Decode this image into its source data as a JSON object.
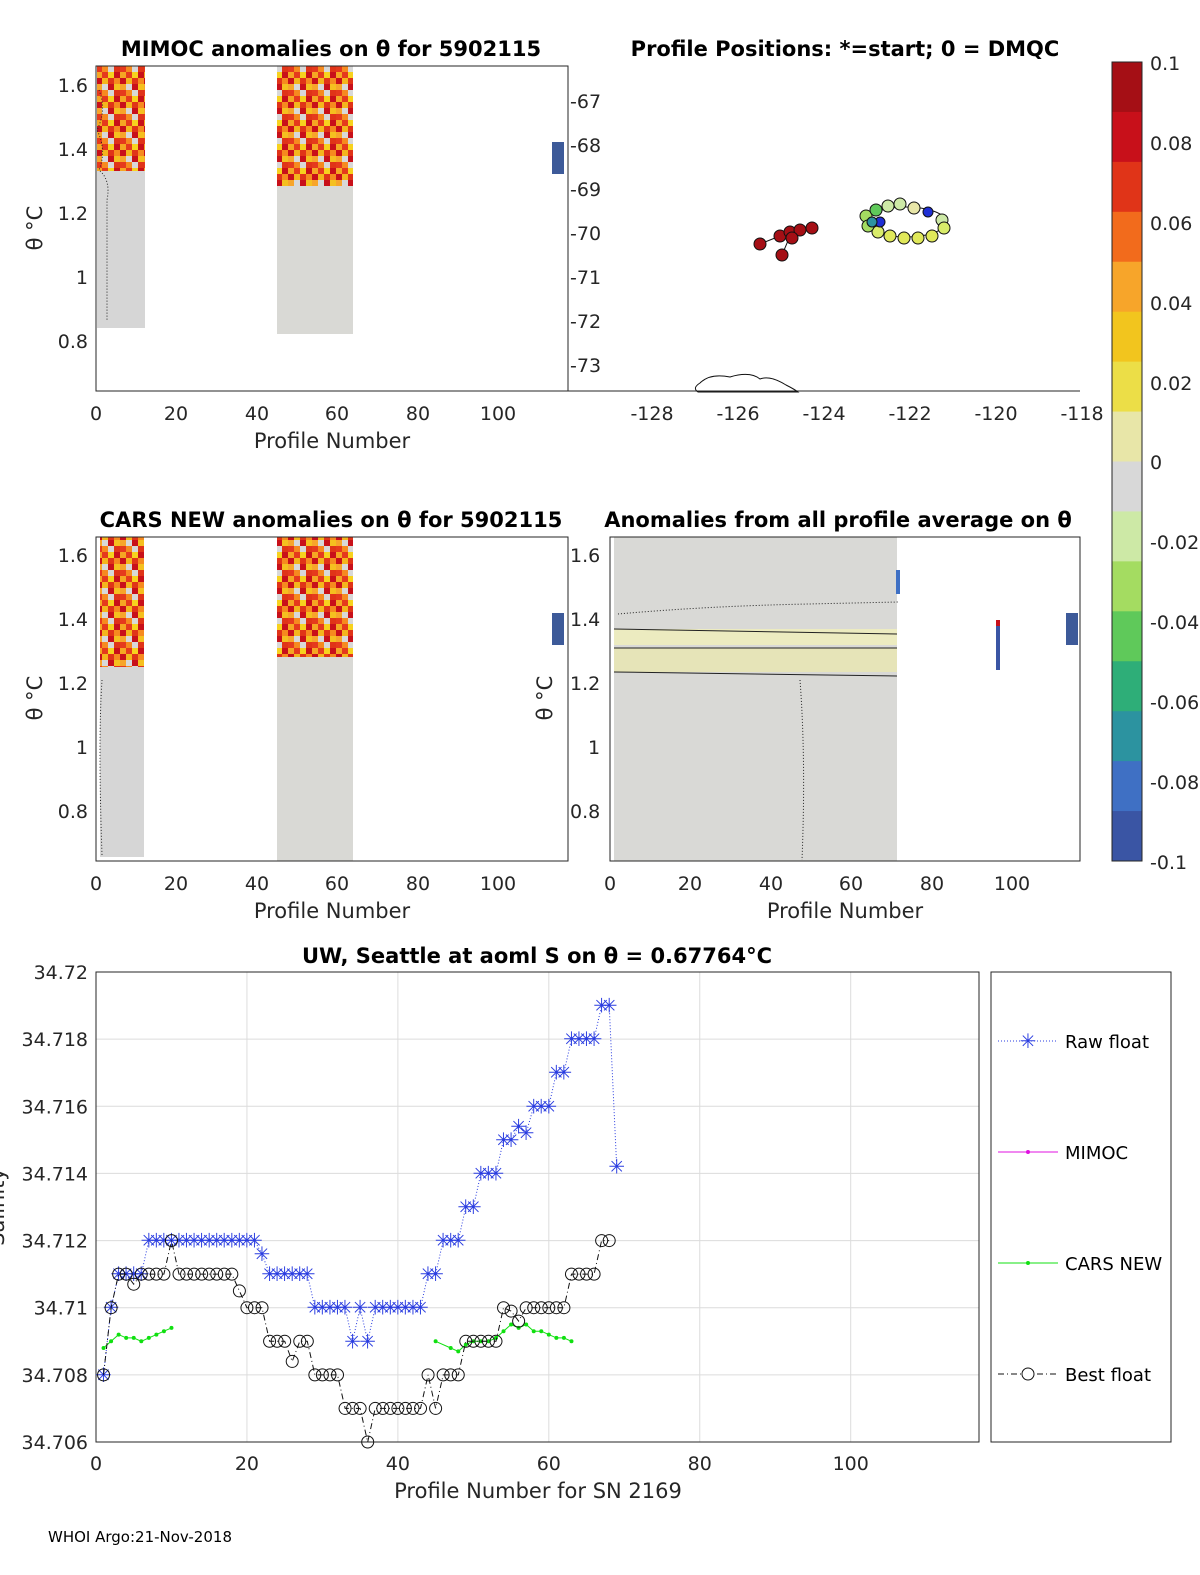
{
  "footer": "WHOI Argo:21-Nov-2018",
  "colorbar": {
    "ticks": [
      "0.1",
      "0.08",
      "0.06",
      "0.04",
      "0.02",
      "0",
      "-0.02",
      "-0.04",
      "-0.06",
      "-0.08",
      "-0.1"
    ],
    "colors": [
      "#a50f15",
      "#c8101a",
      "#e03418",
      "#f26b1c",
      "#f7a52a",
      "#f2c51e",
      "#ecde47",
      "#e8e6a8",
      "#d8d8d8",
      "#cde9a6",
      "#a4dc61",
      "#5fc95a",
      "#2eae78",
      "#2c93a0",
      "#3f70c4",
      "#3a55a4"
    ]
  },
  "panels": {
    "mimoc": {
      "title": "MIMOC anomalies on θ  for 5902115",
      "xlabel": "Profile Number",
      "ylabel": "θ °C",
      "xticks": [
        "0",
        "20",
        "40",
        "60",
        "80",
        "100"
      ],
      "yticks": [
        "1.6",
        "1.4",
        "1.2",
        "1",
        "0.8"
      ]
    },
    "positions": {
      "title": "Profile Positions: *=start; 0 = DMQC",
      "xticks": [
        "-128",
        "-126",
        "-124",
        "-122",
        "-120",
        "-118"
      ],
      "yticks": [
        "-67",
        "-68",
        "-69",
        "-70",
        "-71",
        "-72",
        "-73"
      ]
    },
    "cars": {
      "title": "CARS NEW anomalies on θ for 5902115",
      "xlabel": "Profile Number",
      "ylabel": "θ °C",
      "xticks": [
        "0",
        "20",
        "40",
        "60",
        "80",
        "100"
      ],
      "yticks": [
        "1.6",
        "1.4",
        "1.2",
        "1",
        "0.8"
      ]
    },
    "avg": {
      "title": "Anomalies from all profile average on θ",
      "xlabel": "Profile Number",
      "ylabel": "θ °C",
      "xticks": [
        "0",
        "20",
        "40",
        "60",
        "80",
        "100"
      ],
      "yticks": [
        "1.6",
        "1.4",
        "1.2",
        "1",
        "0.8"
      ]
    }
  },
  "chart_data": {
    "type": "line",
    "title": "UW, Seattle at aoml S on θ = 0.67764°C",
    "xlabel": "Profile Number for SN 2169",
    "ylabel": "Salinity",
    "xlim": [
      0,
      117
    ],
    "ylim": [
      34.706,
      34.72
    ],
    "xticks": [
      "0",
      "20",
      "40",
      "60",
      "80",
      "100"
    ],
    "yticks": [
      "34.72",
      "34.718",
      "34.716",
      "34.714",
      "34.712",
      "34.71",
      "34.708",
      "34.706"
    ],
    "legend": [
      "Raw float",
      "MIMOC",
      "CARS NEW",
      "Best float"
    ],
    "series": [
      {
        "name": "Raw float",
        "x": [
          1,
          2,
          3,
          4,
          5,
          6,
          7,
          8,
          9,
          10,
          11,
          12,
          13,
          14,
          15,
          16,
          17,
          18,
          19,
          20,
          21,
          22,
          23,
          24,
          25,
          26,
          27,
          28,
          29,
          30,
          31,
          32,
          33,
          34,
          35,
          36,
          37,
          38,
          39,
          40,
          41,
          42,
          43,
          44,
          45,
          46,
          47,
          48,
          49,
          50,
          51,
          52,
          53,
          54,
          55,
          56,
          57,
          58,
          59,
          60,
          61,
          62,
          63,
          64,
          65,
          66,
          67,
          68,
          69
        ],
        "y": [
          34.708,
          34.71,
          34.711,
          34.711,
          34.711,
          34.711,
          34.712,
          34.712,
          34.712,
          34.712,
          34.712,
          34.712,
          34.712,
          34.712,
          34.712,
          34.712,
          34.712,
          34.712,
          34.712,
          34.712,
          34.712,
          34.7116,
          34.711,
          34.711,
          34.711,
          34.711,
          34.711,
          34.711,
          34.71,
          34.71,
          34.71,
          34.71,
          34.71,
          34.709,
          34.71,
          34.709,
          34.71,
          34.71,
          34.71,
          34.71,
          34.71,
          34.71,
          34.71,
          34.711,
          34.711,
          34.712,
          34.712,
          34.712,
          34.713,
          34.713,
          34.714,
          34.714,
          34.714,
          34.715,
          34.715,
          34.7154,
          34.7152,
          34.716,
          34.716,
          34.716,
          34.717,
          34.717,
          34.718,
          34.718,
          34.718,
          34.718,
          34.719,
          34.719,
          34.7142
        ]
      },
      {
        "name": "MIMOC",
        "x": [],
        "y": []
      },
      {
        "name": "CARS NEW",
        "x": [
          1,
          2,
          3,
          4,
          5,
          6,
          7,
          8,
          9,
          10,
          45,
          47,
          48,
          49,
          50,
          51,
          52,
          53,
          54,
          55,
          56,
          57,
          58,
          59,
          60,
          61,
          62,
          63
        ],
        "y": [
          34.7088,
          34.709,
          34.7092,
          34.7091,
          34.7091,
          34.709,
          34.7091,
          34.7092,
          34.7093,
          34.7094,
          34.709,
          34.7088,
          34.7087,
          34.7089,
          34.709,
          34.709,
          34.709,
          34.7091,
          34.7093,
          34.7095,
          34.7094,
          34.7095,
          34.7093,
          34.7093,
          34.7092,
          34.7091,
          34.7091,
          34.709
        ]
      },
      {
        "name": "Best float",
        "x": [
          1,
          2,
          3,
          4,
          5,
          6,
          7,
          8,
          9,
          10,
          11,
          12,
          13,
          14,
          15,
          16,
          17,
          18,
          19,
          20,
          21,
          22,
          23,
          24,
          25,
          26,
          27,
          28,
          29,
          30,
          31,
          32,
          33,
          34,
          35,
          36,
          37,
          38,
          39,
          40,
          41,
          42,
          43,
          44,
          45,
          46,
          47,
          48,
          49,
          50,
          51,
          52,
          53,
          54,
          55,
          56,
          57,
          58,
          59,
          60,
          61,
          62,
          63,
          64,
          65,
          66,
          67,
          68
        ],
        "y": [
          34.708,
          34.71,
          34.711,
          34.711,
          34.7107,
          34.711,
          34.711,
          34.711,
          34.711,
          34.712,
          34.711,
          34.711,
          34.711,
          34.711,
          34.711,
          34.711,
          34.711,
          34.711,
          34.7105,
          34.71,
          34.71,
          34.71,
          34.709,
          34.709,
          34.709,
          34.7084,
          34.709,
          34.709,
          34.708,
          34.708,
          34.708,
          34.708,
          34.707,
          34.707,
          34.707,
          34.706,
          34.707,
          34.707,
          34.707,
          34.707,
          34.707,
          34.707,
          34.707,
          34.708,
          34.707,
          34.708,
          34.708,
          34.708,
          34.709,
          34.709,
          34.709,
          34.709,
          34.709,
          34.71,
          34.7099,
          34.7096,
          34.71,
          34.71,
          34.71,
          34.71,
          34.71,
          34.71,
          34.711,
          34.711,
          34.711,
          34.711,
          34.712,
          34.712
        ]
      }
    ]
  }
}
